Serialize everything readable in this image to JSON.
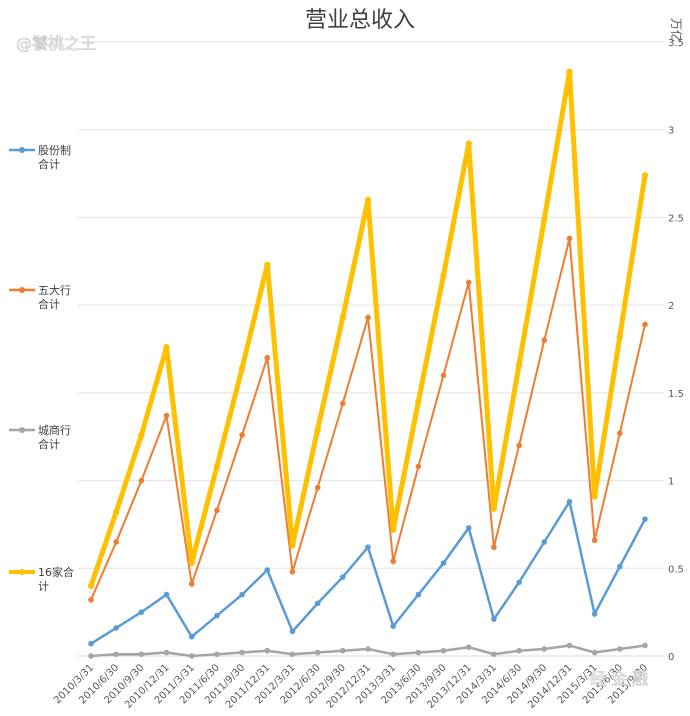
{
  "watermarks": {
    "top_left": "@饕桃之王",
    "bottom_right": "经  金  融"
  },
  "chart_data": {
    "type": "line",
    "title": "营业总收入",
    "ylabel": "万亿",
    "ylim": [
      0,
      3.5
    ],
    "yticks": [
      0,
      0.5,
      1,
      1.5,
      2,
      2.5,
      3,
      3.5
    ],
    "grid": true,
    "legend_position": "left",
    "categories": [
      "2010/3/31",
      "2010/6/30",
      "2010/9/30",
      "2010/12/31",
      "2011/3/31",
      "2011/6/30",
      "2011/9/30",
      "2011/12/31",
      "2012/3/31",
      "2012/6/30",
      "2012/9/30",
      "2012/12/31",
      "2013/3/31",
      "2013/6/30",
      "2013/9/30",
      "2013/12/31",
      "2014/3/31",
      "2014/6/30",
      "2014/9/30",
      "2014/12/31",
      "2015/3/31",
      "2015/6/30",
      "2015/9/30"
    ],
    "series": [
      {
        "name": "股份制合计",
        "label_lines": [
          "股份制",
          "合计"
        ],
        "color": "#5b9bd5",
        "width": 2.5,
        "values": [
          0.07,
          0.16,
          0.25,
          0.35,
          0.11,
          0.23,
          0.35,
          0.49,
          0.14,
          0.3,
          0.45,
          0.62,
          0.17,
          0.35,
          0.53,
          0.73,
          0.21,
          0.42,
          0.65,
          0.88,
          0.24,
          0.51,
          0.78
        ]
      },
      {
        "name": "五大行合计",
        "label_lines": [
          "五大行",
          "合计"
        ],
        "color": "#ed7d31",
        "width": 2,
        "values": [
          0.32,
          0.65,
          1.0,
          1.37,
          0.41,
          0.83,
          1.26,
          1.7,
          0.48,
          0.96,
          1.44,
          1.93,
          0.54,
          1.08,
          1.6,
          2.13,
          0.62,
          1.2,
          1.8,
          2.38,
          0.66,
          1.27,
          1.89
        ]
      },
      {
        "name": "城商行合计",
        "label_lines": [
          "城商行",
          "合计"
        ],
        "color": "#a5a5a5",
        "width": 2.5,
        "values": [
          0.0,
          0.01,
          0.01,
          0.02,
          0.0,
          0.01,
          0.02,
          0.03,
          0.01,
          0.02,
          0.03,
          0.04,
          0.01,
          0.02,
          0.03,
          0.05,
          0.01,
          0.03,
          0.04,
          0.06,
          0.02,
          0.04,
          0.06
        ]
      },
      {
        "name": "16家合计",
        "label_lines": [
          "16家合",
          "计"
        ],
        "color": "#ffc000",
        "width": 5,
        "values": [
          0.4,
          0.82,
          1.26,
          1.76,
          0.53,
          1.08,
          1.64,
          2.23,
          0.63,
          1.29,
          1.93,
          2.6,
          0.72,
          1.45,
          2.17,
          2.92,
          0.84,
          1.66,
          2.49,
          3.33,
          0.91,
          1.82,
          2.74
        ]
      }
    ]
  }
}
